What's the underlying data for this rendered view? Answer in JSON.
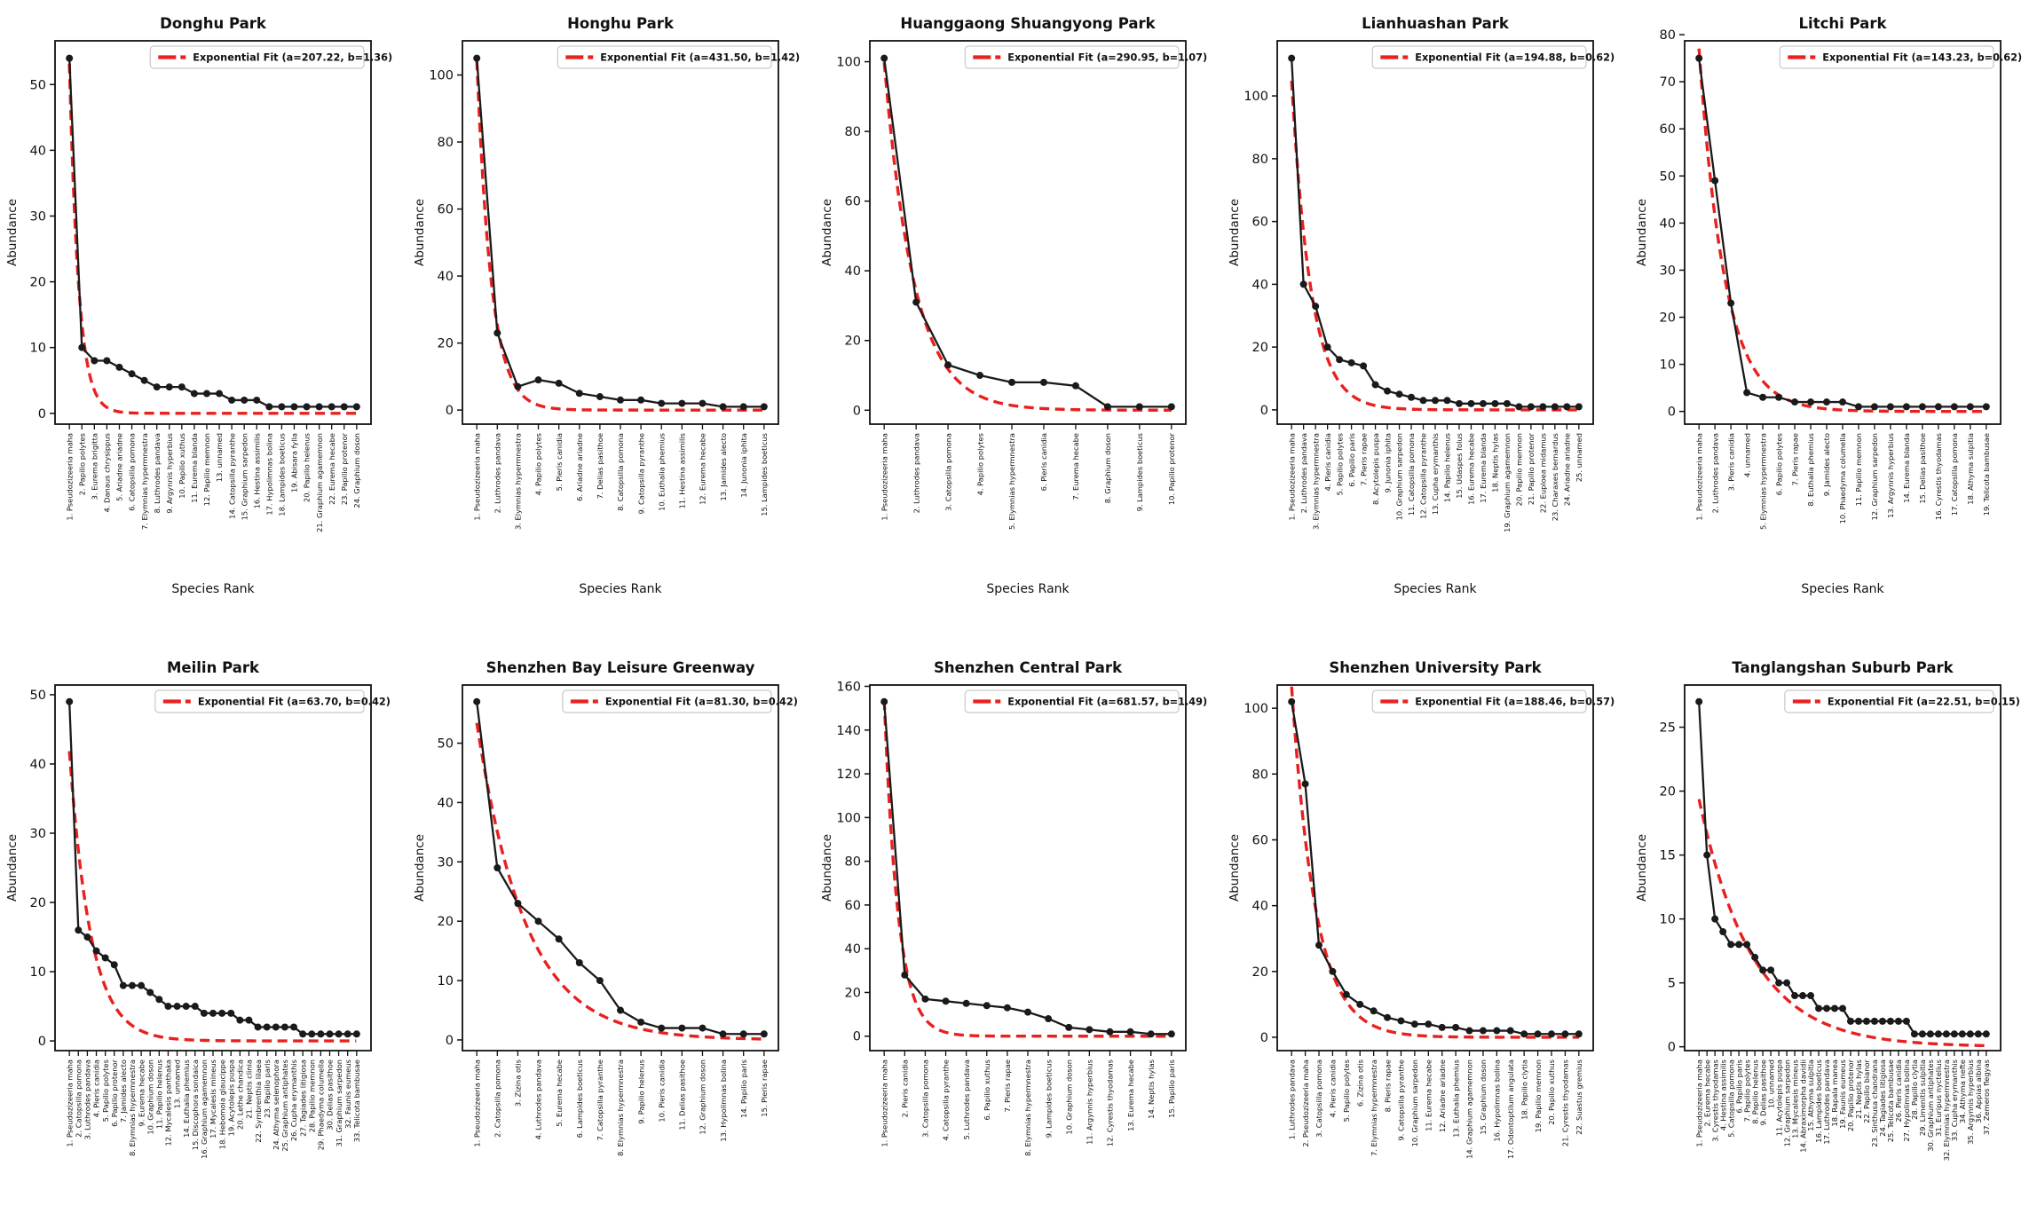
{
  "figure": {
    "ylabel": "Abundance",
    "xlabel": "Species Rank",
    "colors": {
      "data_line": "#1a1a1a",
      "marker": "#1a1a1a",
      "fit_line": "#e8211f",
      "frame": "#111111",
      "legend_border": "#c9c9c9"
    }
  },
  "chart_data": [
    {
      "type": "line",
      "title": "Donghu Park",
      "legend": "Exponential Fit (a=207.22, b=1.36)",
      "fit": {
        "a": 207.22,
        "b": 1.36
      },
      "ylabel": "Abundance",
      "xlabel": "Species Rank",
      "yticks": [
        0,
        10,
        20,
        30,
        40,
        50
      ],
      "categories": [
        "1. Pseudozizeeria maha",
        "2. Papilio polytes",
        "3. Eurema brigitta",
        "4. Danaus chrysippus",
        "5. Ariadne ariadne",
        "6. Catopsilla pomona",
        "7. Elymnias hypermnestra",
        "8. Luthrodes pandava",
        "9. Argynnis hyperbius",
        "10. Papilio xuthus",
        "11. Eurema blanda",
        "12. Papilio memnon",
        "13. unnamed",
        "14. Catopsilla pyranthe",
        "15. Graphium sarpedon",
        "16. Hestina assimilis",
        "17. Hypolimnas bolina",
        "18. Lampides boeticus",
        "19. Abisara fylla",
        "20. Papilio helenus",
        "21. Graphium agamemnon",
        "22. Eurema hecabe",
        "23. Papilio protenor",
        "24. Graphium doson"
      ],
      "values": [
        54,
        10,
        8,
        8,
        7,
        6,
        5,
        4,
        4,
        4,
        3,
        3,
        3,
        2,
        2,
        2,
        1,
        1,
        1,
        1,
        1,
        1,
        1,
        1
      ]
    },
    {
      "type": "line",
      "title": "Honghu Park",
      "legend": "Exponential Fit (a=431.50, b=1.42)",
      "fit": {
        "a": 431.5,
        "b": 1.42
      },
      "ylabel": "Abundance",
      "xlabel": "Species Rank",
      "yticks": [
        0,
        20,
        40,
        60,
        80,
        100
      ],
      "categories": [
        "1. Pseudozizeeria maha",
        "2. Luthrodes pandava",
        "3. Elymnias hypermnestra",
        "4. Papilio polytes",
        "5. Pieris canidia",
        "6. Ariadne ariadne",
        "7. Delias pasithoe",
        "8. Catopsilla pomona",
        "9. Catopsilla pyranthe",
        "10. Euthalia phemius",
        "11. Hestina assimilis",
        "12. Eurema hecabe",
        "13. Jamides alecto",
        "14. Junonia iphita",
        "15. Lampides boeticus"
      ],
      "values": [
        105,
        23,
        7,
        9,
        8,
        5,
        4,
        3,
        3,
        2,
        2,
        2,
        1,
        1,
        1
      ]
    },
    {
      "type": "line",
      "title": "Huanggaong Shuangyong Park",
      "legend": "Exponential Fit (a=290.95, b=1.07)",
      "fit": {
        "a": 290.95,
        "b": 1.07
      },
      "ylabel": "Abundance",
      "xlabel": "Species Rank",
      "yticks": [
        0,
        20,
        40,
        60,
        80,
        100
      ],
      "categories": [
        "1. Pseudozizeeria maha",
        "2. Luthrodes pandava",
        "3. Catopsilla pomona",
        "4. Papilio polytes",
        "5. Elymnias hypermnestra",
        "6. Pieris canidia",
        "7. Eurema hecabe",
        "8. Graphium doson",
        "9. Lampides boeticus",
        "10. Papilio protenor"
      ],
      "values": [
        101,
        31,
        13,
        10,
        8,
        8,
        7,
        1,
        1,
        1
      ]
    },
    {
      "type": "line",
      "title": "Lianhuashan Park",
      "legend": "Exponential Fit (a=194.88, b=0.62)",
      "fit": {
        "a": 194.88,
        "b": 0.62
      },
      "ylabel": "Abundance",
      "xlabel": "Species Rank",
      "yticks": [
        0,
        20,
        40,
        60,
        80,
        100
      ],
      "categories": [
        "1. Pseudozizeeria maha",
        "2. Luthrodes pandava",
        "3. Elymnias hypermnestra",
        "4. Pieris canidia",
        "5. Papilio polytes",
        "6. Papilio paris",
        "7. Pieris rapae",
        "8. Acytolepis puspa",
        "9. Junonia iphita",
        "10. Graphium sarpedon",
        "11. Catopsilla pomona",
        "12. Catopsilla pyranthe",
        "13. Cupha erymanthis",
        "14. Papilio helenus",
        "15. Udaspes folus",
        "16. Eurema hecabe",
        "17. Eurema blanda",
        "18. Neptis hylas",
        "19. Graphium agamemnon",
        "20. Papilio memnon",
        "21. Papilio protenor",
        "22. Euploea midamus",
        "23. Charaxes bernardus",
        "24. Ariadne ariadne",
        "25. unnamed"
      ],
      "values": [
        112,
        40,
        33,
        20,
        16,
        15,
        14,
        8,
        6,
        5,
        4,
        3,
        3,
        3,
        2,
        2,
        2,
        2,
        2,
        1,
        1,
        1,
        1,
        1,
        1
      ]
    },
    {
      "type": "line",
      "title": "Litchi Park",
      "legend": "Exponential Fit (a=143.23, b=0.62)",
      "fit": {
        "a": 143.23,
        "b": 0.62
      },
      "ylabel": "Abundance",
      "xlabel": "Species Rank",
      "yticks": [
        0,
        10,
        20,
        30,
        40,
        50,
        60,
        70,
        80
      ],
      "categories": [
        "1. Pseudozizeeria maha",
        "2. Luthrodes pandava",
        "3. Pieris canidia",
        "4. unnamed",
        "5. Elymnias hypermnestra",
        "6. Papilio polytes",
        "7. Pieris rapae",
        "8. Euthalia phemius",
        "9. Jamides alecto",
        "10. Phaedyma columella",
        "11. Papilio memnon",
        "12. Graphium sarpedon",
        "13. Argynnis hyperbius",
        "14. Eurema blanda",
        "15. Delias pasithoe",
        "16. Cyrestis thyodamas",
        "17. Catopsilla pomona",
        "18. Athyma sulpitia",
        "19. Telicota bambusae"
      ],
      "values": [
        75,
        49,
        23,
        4,
        3,
        3,
        2,
        2,
        2,
        2,
        1,
        1,
        1,
        1,
        1,
        1,
        1,
        1,
        1
      ]
    },
    {
      "type": "line",
      "title": "Meilin Park",
      "legend": "Exponential Fit (a=63.70, b=0.42)",
      "fit": {
        "a": 63.7,
        "b": 0.42
      },
      "ylabel": "Abundance",
      "xlabel": "",
      "yticks": [
        0,
        10,
        20,
        30,
        40,
        50
      ],
      "categories": [
        "1. Pseudozizeeria maha",
        "2. Catopsilla pomona",
        "3. Luthrodes pandava",
        "4. Pieris canidia",
        "5. Papilio polytes",
        "6. Papilio protenor",
        "7. Jamides alecto",
        "8. Elymnias hypermnestra",
        "9. Eurema hecabe",
        "10. Graphium doson",
        "11. Papilio helenus",
        "12. Mycalesis panthaka",
        "13. unnamed",
        "14. Euthalia phemius",
        "15. Discophora sondaica",
        "16. Graphium agamemnon",
        "17. Mycalesis mineus",
        "18. Hebomoia glaucippe",
        "19. Acytolepis puspa",
        "20. Lethe chandica",
        "21. Neptis clinia",
        "22. Symbrenthia lilaea",
        "23. Papilio paris",
        "24. Athyma selenophora",
        "25. Graphium antiphates",
        "26. Cupha erymanthis",
        "27. Tagiades litigiosa",
        "28. Papilio memnon",
        "29. Phaedyma columella",
        "30. Delias pasithoe",
        "31. Graphium sarpedon",
        "32. Faunis eumeus",
        "33. Telicota bambusae"
      ],
      "values": [
        49,
        16,
        15,
        13,
        12,
        11,
        8,
        8,
        8,
        7,
        6,
        5,
        5,
        5,
        5,
        4,
        4,
        4,
        4,
        3,
        3,
        2,
        2,
        2,
        2,
        2,
        1,
        1,
        1,
        1,
        1,
        1,
        1
      ]
    },
    {
      "type": "line",
      "title": "Shenzhen Bay Leisure Greenway",
      "legend": "Exponential Fit (a=81.30, b=0.42)",
      "fit": {
        "a": 81.3,
        "b": 0.42
      },
      "ylabel": "Abundance",
      "xlabel": "",
      "yticks": [
        0,
        10,
        20,
        30,
        40,
        50
      ],
      "categories": [
        "1. Pseudozizeeria maha",
        "2. Catopsilla pomona",
        "3. Zizina otis",
        "4. Luthrodes pandava",
        "5. Eurema hecabe",
        "6. Lampides boeticus",
        "7. Catopsilla pyranthe",
        "8. Elymnias hypermnestra",
        "9. Papilio helenus",
        "10. Pieris canidia",
        "11. Delias pasithoe",
        "12. Graphium doson",
        "13. Hypolimnas bolina",
        "14. Papilio paris",
        "15. Pieris rapae"
      ],
      "values": [
        57,
        29,
        23,
        20,
        17,
        13,
        10,
        5,
        3,
        2,
        2,
        2,
        1,
        1,
        1
      ]
    },
    {
      "type": "line",
      "title": "Shenzhen Central Park",
      "legend": "Exponential Fit (a=681.57, b=1.49)",
      "fit": {
        "a": 681.57,
        "b": 1.49
      },
      "ylabel": "Abundance",
      "xlabel": "",
      "yticks": [
        0,
        20,
        40,
        60,
        80,
        100,
        120,
        140,
        160
      ],
      "categories": [
        "1. Pseudozizeeria maha",
        "2. Pieris canidia",
        "3. Catopsilla pomona",
        "4. Catopsilla pyranthe",
        "5. Luthrodes pandava",
        "6. Papilio xuthus",
        "7. Pieris rapae",
        "8. Elymnias hypermnestra",
        "9. Lampides boeticus",
        "10. Graphium doson",
        "11. Argynnis hyperbius",
        "12. Cyrestis thyodamas",
        "13. Eurema hecabe",
        "14. Neptis hylas",
        "15. Papilio paris"
      ],
      "values": [
        153,
        28,
        17,
        16,
        15,
        14,
        13,
        11,
        8,
        4,
        3,
        2,
        2,
        1,
        1
      ]
    },
    {
      "type": "line",
      "title": "Shenzhen University Park",
      "legend": "Exponential Fit (a=188.46, b=0.57)",
      "fit": {
        "a": 188.46,
        "b": 0.57
      },
      "ylabel": "Abundance",
      "xlabel": "",
      "yticks": [
        0,
        20,
        40,
        60,
        80,
        100
      ],
      "categories": [
        "1. Luthrodes pandava",
        "2. Pseudozizeeria maha",
        "3. Catopsilla pomona",
        "4. Pieris canidia",
        "5. Papilio polytes",
        "6. Zizina otis",
        "7. Elymnias hypermnestra",
        "8. Pieris rapae",
        "9. Catopsilla pyranthe",
        "10. Graphium sarpedon",
        "11. Eurema hecabe",
        "12. Ariadne ariadne",
        "13. Euthalia phemius",
        "14. Graphium agamemnon",
        "15. Graphium doson",
        "16. Hypolimnas bolina",
        "17. Odontoptilum angulata",
        "18. Papilio clytia",
        "19. Papilio memnon",
        "20. Papilio xuthus",
        "21. Cyrestis thyodamas",
        "22. Suastus gremius"
      ],
      "values": [
        102,
        77,
        28,
        20,
        13,
        10,
        8,
        6,
        5,
        4,
        4,
        3,
        3,
        2,
        2,
        2,
        2,
        1,
        1,
        1,
        1,
        1
      ]
    },
    {
      "type": "line",
      "title": "Tanglangshan Suburb Park",
      "legend": "Exponential Fit (a=22.51, b=0.15)",
      "fit": {
        "a": 22.51,
        "b": 0.15
      },
      "ylabel": "Abundance",
      "xlabel": "",
      "yticks": [
        0,
        5,
        10,
        15,
        20,
        25
      ],
      "categories": [
        "1. Pseudozizeeria maha",
        "2. Eurema hecabe",
        "3. Cyrestis thyodamas",
        "4. Hestina assimilis",
        "5. Catopsilla pomona",
        "6. Papilio paris",
        "7. Papilio polytes",
        "8. Papilio helenus",
        "9. Delias pasithoe",
        "10. unnamed",
        "11. Acytolepis puspa",
        "12. Graphium sarpedon",
        "13. Mycalesis mineus",
        "14. Abraximorpha davidii",
        "15. Athyma sulpitia",
        "16. Lampides boeticus",
        "17. Luthrodes pandava",
        "18. Rapala manea",
        "19. Faunis eumeus",
        "20. Papilio protenor",
        "21. Neptis hylas",
        "22. Papilio bianor",
        "23. Sinthusa chandrana",
        "24. Tagiades litigiosa",
        "25. Telicota bambusae",
        "26. Pieris canidia",
        "27. Hypolimnas bolina",
        "28. Papilio clytia",
        "29. Limenitis sulpitia",
        "30. Graphium antiphates",
        "31. Euripus nyctelius",
        "32. Elymnias hypermnestra",
        "33. Cupha erymanthis",
        "34. Athyma nefte",
        "35. Argynnis hyperbius",
        "36. Appias albina",
        "37. Zemeros flegyas"
      ],
      "values": [
        27,
        15,
        10,
        9,
        8,
        8,
        8,
        7,
        6,
        6,
        5,
        5,
        4,
        4,
        4,
        3,
        3,
        3,
        3,
        2,
        2,
        2,
        2,
        2,
        2,
        2,
        2,
        1,
        1,
        1,
        1,
        1,
        1,
        1,
        1,
        1,
        1
      ]
    }
  ]
}
